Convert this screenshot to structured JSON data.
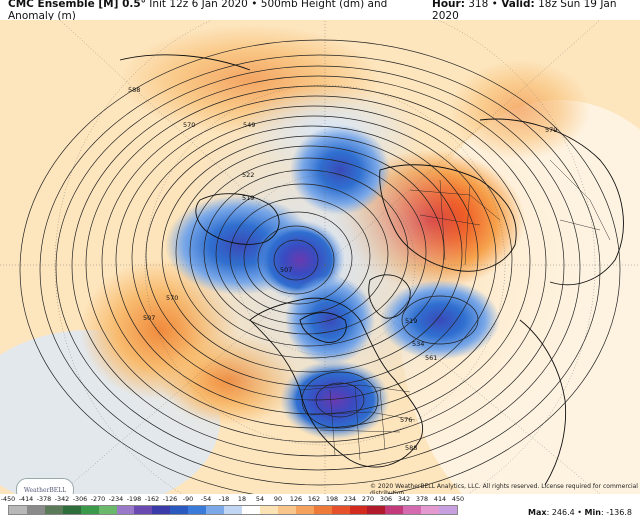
{
  "header": {
    "model": "CMC Ensemble [M] 0.5°",
    "init": "Init 12z 6 Jan 2020",
    "product": "500mb Height (dm) and Anomaly (m)",
    "hour_label": "Hour:",
    "hour_value": "318",
    "valid_label": "Valid:",
    "valid_value": "18z Sun 19 Jan 2020"
  },
  "map": {
    "contour_labels": [
      "588",
      "570",
      "549",
      "522",
      "519",
      "507",
      "570",
      "507",
      "519",
      "534",
      "561",
      "579",
      "576",
      "588"
    ],
    "credit": "© 2020 WeatherBELL Analytics, LLC. All rights reserved. License required for commercial distribution.",
    "logo_text": "WeatherBELL",
    "colors": {
      "strong_positive": "#e8361a",
      "positive": "#f5a84a",
      "weak_positive": "#fde2b0",
      "negative": "#2f6fd0",
      "strong_negative": "#5a3ab8",
      "weak_negative": "#d6e4f7"
    }
  },
  "legend": {
    "ticks": [
      "-450",
      "-414",
      "-378",
      "-342",
      "-306",
      "-270",
      "-234",
      "-198",
      "-162",
      "-126",
      "-90",
      "-54",
      "-18",
      "18",
      "54",
      "90",
      "126",
      "162",
      "198",
      "234",
      "270",
      "306",
      "342",
      "378",
      "414",
      "450"
    ],
    "colors": [
      "#b8b8b8",
      "#8a8a8a",
      "#5a7a5a",
      "#2e6e3a",
      "#3a9a4a",
      "#6ab86a",
      "#9a7ac8",
      "#6a4ab0",
      "#3a3aa8",
      "#2a5ac0",
      "#3a7ad8",
      "#7aa8e8",
      "#c0d6f2",
      "#ffffff",
      "#fbe3b5",
      "#f8c68a",
      "#f4a25e",
      "#ee7a3a",
      "#e6502a",
      "#d22a1e",
      "#b01a2a",
      "#c23a7a",
      "#d46ab0",
      "#e49ad0",
      "#c8a0e0"
    ],
    "max_label": "Max",
    "max_value": "246.4",
    "min_label": "Min",
    "min_value": "-136.8"
  }
}
